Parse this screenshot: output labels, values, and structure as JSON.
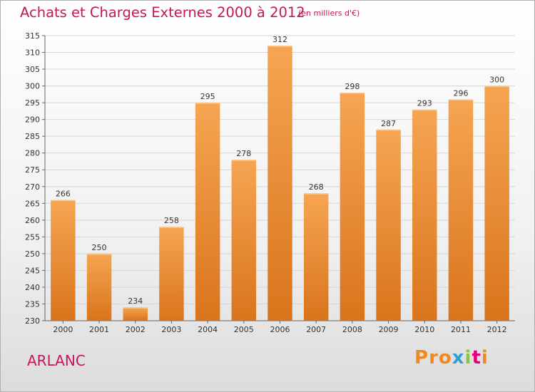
{
  "header": {
    "title": "Achats et Charges Externes 2000 à 2012",
    "unit": "(en milliers d'€)"
  },
  "footer": {
    "location": "ARLANC",
    "logo_letters": [
      "P",
      "r",
      "o",
      "x",
      "i",
      "t",
      "i"
    ]
  },
  "colors": {
    "title": "#c2185b",
    "bar_top": "#f6a553",
    "bar_bottom": "#d9741c",
    "logo": [
      "#f08a1e",
      "#f08a1e",
      "#f08a1e",
      "#2f9fd8",
      "#8cc63f",
      "#e6007e",
      "#f08a1e"
    ]
  },
  "chart_data": {
    "type": "bar",
    "categories": [
      "2000",
      "2001",
      "2002",
      "2003",
      "2004",
      "2005",
      "2006",
      "2007",
      "2008",
      "2009",
      "2010",
      "2011",
      "2012"
    ],
    "values": [
      266,
      250,
      234,
      258,
      295,
      278,
      312,
      268,
      298,
      287,
      293,
      296,
      300
    ],
    "data_labels": [
      "266",
      "250",
      "234",
      "258",
      "295",
      "278",
      "312",
      "268",
      "298",
      "287",
      "293",
      "296",
      "300"
    ],
    "ylim": [
      230,
      315
    ],
    "yticks": [
      230,
      235,
      240,
      245,
      250,
      255,
      260,
      265,
      270,
      275,
      280,
      285,
      290,
      295,
      300,
      305,
      310,
      315
    ],
    "grid": true,
    "legend": "none"
  }
}
